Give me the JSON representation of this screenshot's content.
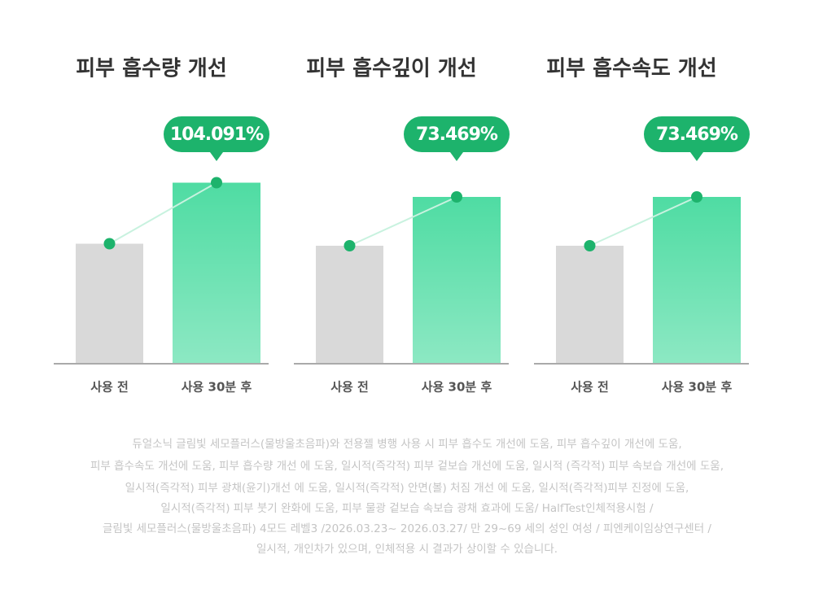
{
  "chart_data": [
    {
      "type": "bar",
      "title": "피부 흡수량 개선",
      "categories": [
        "사용 전",
        "사용 30분 후"
      ],
      "values": [
        59,
        89
      ],
      "colors": [
        "#d9d9d9",
        "#4fdca3"
      ],
      "ylim": [
        0,
        100
      ],
      "annotation": "104.091%"
    },
    {
      "type": "bar",
      "title": "피부 흡수깊이 개선",
      "categories": [
        "사용 전",
        "사용 30분 후"
      ],
      "values": [
        58,
        82
      ],
      "colors": [
        "#d9d9d9",
        "#4fdca3"
      ],
      "ylim": [
        0,
        100
      ],
      "annotation": "73.469%"
    },
    {
      "type": "bar",
      "title": "피부 흡수속도 개선",
      "categories": [
        "사용 전",
        "사용 30분 후"
      ],
      "values": [
        58,
        82
      ],
      "colors": [
        "#d9d9d9",
        "#4fdca3"
      ],
      "ylim": [
        0,
        100
      ],
      "annotation": "73.469%"
    }
  ],
  "footnote": [
    "듀얼소닉 글림빛 세모플러스(물방울초음파)와 전용젤 병행 사용 시 피부 흡수도 개선에 도움,  피부 흡수깊이 개선에 도움,",
    "피부 흡수속도 개선에 도움, 피부 흡수량 개선 에 도움, 일시적(즉각적) 피부 겉보습 개선에 도움, 일시적 (즉각적) 피부 속보습 개선에 도움,",
    "일시적(즉각적) 피부 광채(윤기)개선 에 도움, 일시적(즉각적) 안면(볼) 처짐 개선 에 도움, 일시적(즉각적)피부 진정에 도움,",
    "일시적(즉각적) 피부 붓기 완화에 도움, 피부 물광 겉보습 속보습 광채 효과에 도움/ HalfTest인체적용시험 /",
    "글림빛 세모플러스(물방울초음파) 4모드 레벨3 /2026.03.23~ 2026.03.27/ 만 29~69 세의 성인 여성 / 피엔케이임상연구센터 /",
    "일시적, 개인차가 있으며, 인체적용 시 결과가 상이할 수 있습니다."
  ]
}
